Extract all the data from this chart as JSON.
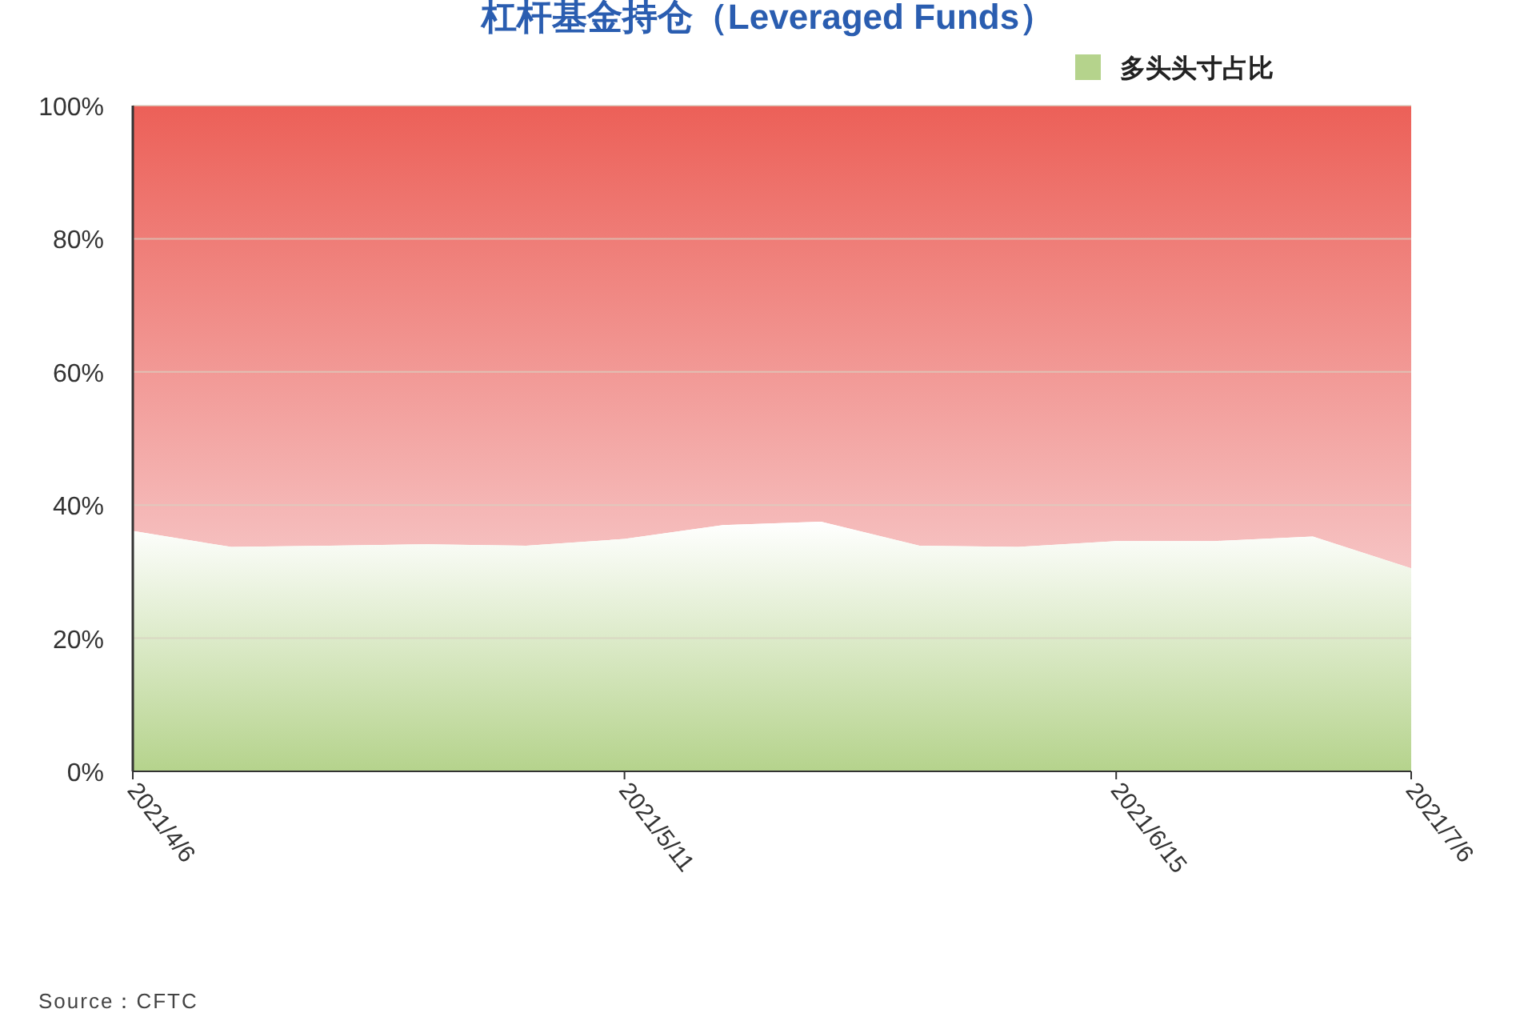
{
  "chart_data": {
    "type": "area",
    "title": "杠杆基金持仓（Leveraged Funds）",
    "stacked": true,
    "x": [
      "2021-04-06",
      "2021-04-13",
      "2021-04-20",
      "2021-04-27",
      "2021-05-04",
      "2021-05-11",
      "2021-05-18",
      "2021-05-25",
      "2021-06-01",
      "2021-06-08",
      "2021-06-15",
      "2021-06-22",
      "2021-06-29",
      "2021-07-06"
    ],
    "series": [
      {
        "name": "多头头寸占比",
        "color": "#b5d38c",
        "values": [
          36.1,
          33.7,
          33.9,
          34.1,
          33.9,
          34.9,
          37.0,
          37.5,
          33.9,
          33.7,
          34.6,
          34.6,
          35.3,
          30.5
        ]
      },
      {
        "color": "#ec6058",
        "values": [
          63.9,
          66.3,
          66.1,
          65.9,
          66.1,
          65.1,
          63.0,
          62.5,
          66.1,
          66.3,
          65.4,
          65.4,
          64.7,
          69.5
        ]
      }
    ],
    "xlim": [
      "2021-04-06",
      "2021-07-06"
    ],
    "xticks": [
      {
        "value": "2021-04-06",
        "label": "2021/4/6"
      },
      {
        "value": "2021-05-11",
        "label": "2021/5/11"
      },
      {
        "value": "2021-06-15",
        "label": "2021/6/15"
      },
      {
        "value": "2021-07-06",
        "label": "2021/7/6"
      }
    ],
    "ylim": [
      0,
      100
    ],
    "yticks": [
      {
        "value": 0,
        "label": "0%"
      },
      {
        "value": 20,
        "label": "20%"
      },
      {
        "value": 40,
        "label": "40%"
      },
      {
        "value": 60,
        "label": "60%"
      },
      {
        "value": 80,
        "label": "80%"
      },
      {
        "value": 100,
        "label": "100%"
      }
    ],
    "grid": "y",
    "legend": "top right",
    "annotations": [
      "Source：CFTC"
    ]
  }
}
